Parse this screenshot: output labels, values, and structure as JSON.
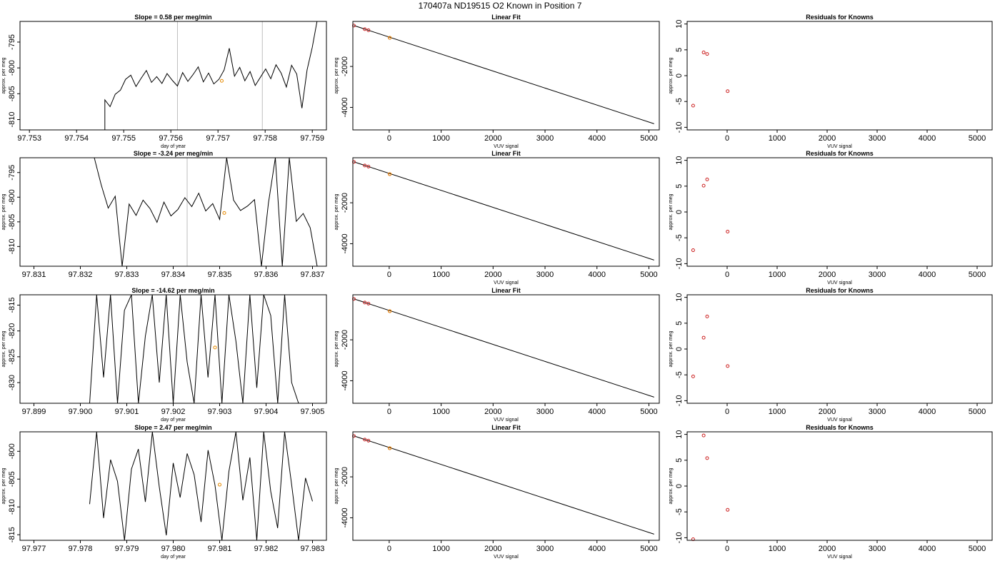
{
  "page_title": "170407a     ND19515   O2 Known in Position  7",
  "colors": {
    "trace": "#000000",
    "vline": "#bdbdbd",
    "known_point": "#cc2222",
    "highlight_point": "#e68a00",
    "axis": "#000000"
  },
  "chart_data": [
    {
      "type": "line",
      "row": 0,
      "title": "Slope =   0.58  per meg/min",
      "xlabel": "day of year",
      "ylabel": "approx. per meg",
      "xlim": [
        97.7528,
        97.7593
      ],
      "ylim": [
        -812,
        -791
      ],
      "xticks": [
        97.753,
        97.754,
        97.755,
        97.756,
        97.757,
        97.758,
        97.759
      ],
      "xtick_labels": [
        "97.753",
        "97.754",
        "97.755",
        "97.756",
        "97.757",
        "97.758",
        "97.759"
      ],
      "yticks": [
        -810,
        -805,
        -800,
        -795
      ],
      "ytick_labels": [
        "-810",
        "-805",
        "-800",
        "-795"
      ],
      "vlines": [
        97.75614,
        97.75794
      ],
      "highlight_point": [
        97.75708,
        -802.5
      ],
      "series": [
        {
          "x": [
            97.7546,
            97.7546,
            97.75471,
            97.75482,
            97.75493,
            97.75504,
            97.75515,
            97.75526,
            97.75537,
            97.75548,
            97.75559,
            97.7557,
            97.75581,
            97.75592,
            97.75603,
            97.75614,
            97.75625,
            97.75636,
            97.75647,
            97.75658,
            97.75669,
            97.7568,
            97.75691,
            97.75702,
            97.75713,
            97.75724,
            97.75735,
            97.75746,
            97.75757,
            97.75768,
            97.75779,
            97.7579,
            97.75801,
            97.75812,
            97.75823,
            97.75834,
            97.75845,
            97.75856,
            97.75867,
            97.75878,
            97.75889,
            97.759,
            97.7591
          ],
          "y": [
            -812,
            -806.2,
            -807.5,
            -805.1,
            -804.3,
            -802.2,
            -801.4,
            -803.6,
            -802.0,
            -800.5,
            -802.8,
            -801.7,
            -803.0,
            -801.1,
            -802.4,
            -803.5,
            -800.9,
            -802.6,
            -801.3,
            -799.8,
            -802.7,
            -801.0,
            -803.1,
            -802.2,
            -800.4,
            -796.2,
            -801.6,
            -799.9,
            -802.5,
            -800.7,
            -803.4,
            -801.8,
            -800.2,
            -802.1,
            -799.4,
            -801.0,
            -803.7,
            -799.5,
            -801.2,
            -807.8,
            -800.4,
            -796.0,
            -791.0
          ]
        }
      ]
    },
    {
      "type": "scatter",
      "row": 0,
      "title": "Linear Fit",
      "xlabel": "VUV signal",
      "ylabel": "approx. per meg",
      "xlim": [
        -700,
        5200
      ],
      "ylim": [
        -5100,
        200
      ],
      "xticks": [
        0,
        1000,
        2000,
        3000,
        4000,
        5000
      ],
      "xtick_labels": [
        "0",
        "1000",
        "2000",
        "3000",
        "4000",
        "5000"
      ],
      "yticks": [
        -4000,
        -2000
      ],
      "ytick_labels": [
        "-4000",
        "-2000"
      ],
      "fit_line": [
        [
          -680,
          0
        ],
        [
          5100,
          -4800
        ]
      ],
      "points": [
        [
          -680,
          -5
        ],
        [
          -470,
          -180
        ],
        [
          -400,
          -230
        ],
        [
          10,
          -600
        ]
      ],
      "highlight_point": [
        10,
        -600
      ]
    },
    {
      "type": "scatter",
      "row": 0,
      "title": "Residuals for Knowns",
      "xlabel": "VUV signal",
      "ylabel": "approx. per meg",
      "xlim": [
        -800,
        5300
      ],
      "ylim": [
        -10.5,
        10.5
      ],
      "xticks": [
        0,
        1000,
        2000,
        3000,
        4000,
        5000
      ],
      "xtick_labels": [
        "0",
        "1000",
        "2000",
        "3000",
        "4000",
        "5000"
      ],
      "yticks": [
        -10,
        -5,
        0,
        5,
        10
      ],
      "ytick_labels": [
        "-10",
        "-5",
        "0",
        "5",
        "10"
      ],
      "points": [
        [
          -680,
          -5.8
        ],
        [
          -470,
          4.5
        ],
        [
          -400,
          4.2
        ],
        [
          10,
          -3.0
        ]
      ]
    },
    {
      "type": "line",
      "row": 1,
      "title": "Slope =   -3.24  per meg/min",
      "xlabel": "",
      "ylabel": "approx. per meg",
      "xlim": [
        97.8307,
        97.8373
      ],
      "ylim": [
        -814,
        -792
      ],
      "xticks": [
        97.831,
        97.832,
        97.833,
        97.834,
        97.835,
        97.836,
        97.837
      ],
      "xtick_labels": [
        "97.831",
        "97.832",
        "97.833",
        "97.834",
        "97.835",
        "97.836",
        "97.837"
      ],
      "yticks": [
        -810,
        -805,
        -800,
        -795
      ],
      "ytick_labels": [
        "-810",
        "-805",
        "-800",
        "-795"
      ],
      "vlines": [
        97.8343
      ],
      "highlight_point": [
        97.8351,
        -803.2
      ],
      "series": [
        {
          "x": [
            97.8323,
            97.83245,
            97.8326,
            97.83275,
            97.8329,
            97.83305,
            97.8332,
            97.83335,
            97.8335,
            97.83365,
            97.8338,
            97.83395,
            97.8341,
            97.83425,
            97.8344,
            97.83455,
            97.8347,
            97.83485,
            97.835,
            97.83515,
            97.8353,
            97.83545,
            97.8356,
            97.83575,
            97.8359,
            97.83605,
            97.8362,
            97.83635,
            97.8365,
            97.83665,
            97.8368,
            97.83695,
            97.8371
          ],
          "y": [
            -792,
            -797.5,
            -802.2,
            -799.8,
            -814,
            -801.4,
            -803.7,
            -800.6,
            -802.3,
            -805.1,
            -801.0,
            -803.8,
            -802.5,
            -800.1,
            -801.9,
            -799.2,
            -802.8,
            -801.3,
            -804.5,
            -792,
            -800.6,
            -802.7,
            -801.8,
            -800.5,
            -814,
            -801.2,
            -792,
            -814,
            -792,
            -804.9,
            -803.3,
            -806.2,
            -814
          ]
        }
      ]
    },
    {
      "type": "scatter",
      "row": 1,
      "title": "Linear Fit",
      "xlabel": "VUV signal",
      "ylabel": "approx. per meg",
      "xlim": [
        -700,
        5200
      ],
      "ylim": [
        -5100,
        200
      ],
      "xticks": [
        0,
        1000,
        2000,
        3000,
        4000,
        5000
      ],
      "xtick_labels": [
        "0",
        "1000",
        "2000",
        "3000",
        "4000",
        "5000"
      ],
      "yticks": [
        -4000,
        -2000
      ],
      "ytick_labels": [
        "-4000",
        "-2000"
      ],
      "fit_line": [
        [
          -680,
          0
        ],
        [
          5100,
          -4800
        ]
      ],
      "points": [
        [
          -680,
          -5
        ],
        [
          -470,
          -180
        ],
        [
          -400,
          -230
        ],
        [
          10,
          -600
        ]
      ],
      "highlight_point": [
        10,
        -600
      ]
    },
    {
      "type": "scatter",
      "row": 1,
      "title": "Residuals for Knowns",
      "xlabel": "VUV signal",
      "ylabel": "approx. per meg",
      "xlim": [
        -800,
        5300
      ],
      "ylim": [
        -10.5,
        10.5
      ],
      "xticks": [
        0,
        1000,
        2000,
        3000,
        4000,
        5000
      ],
      "xtick_labels": [
        "0",
        "1000",
        "2000",
        "3000",
        "4000",
        "5000"
      ],
      "yticks": [
        -10,
        -5,
        0,
        5,
        10
      ],
      "ytick_labels": [
        "-10",
        "-5",
        "0",
        "5",
        "10"
      ],
      "points": [
        [
          -680,
          -7.4
        ],
        [
          -470,
          5.1
        ],
        [
          -400,
          6.3
        ],
        [
          10,
          -3.8
        ]
      ]
    },
    {
      "type": "line",
      "row": 2,
      "title": "Slope =   -14.62  per meg/min",
      "xlabel": "day of year",
      "ylabel": "approx. per meg",
      "xlim": [
        97.8987,
        97.9053
      ],
      "ylim": [
        -834,
        -813
      ],
      "xticks": [
        97.899,
        97.9,
        97.901,
        97.902,
        97.903,
        97.904,
        97.905
      ],
      "xtick_labels": [
        "97.899",
        "97.900",
        "97.901",
        "97.902",
        "97.903",
        "97.904",
        "97.905"
      ],
      "yticks": [
        -830,
        -825,
        -820,
        -815
      ],
      "ytick_labels": [
        "-830",
        "-825",
        "-820",
        "-815"
      ],
      "vlines": [],
      "highlight_point": [
        97.9029,
        -823.2
      ],
      "series": [
        {
          "x": [
            97.9002,
            97.90035,
            97.9005,
            97.90065,
            97.9008,
            97.90095,
            97.9011,
            97.90125,
            97.9014,
            97.90155,
            97.9017,
            97.90185,
            97.902,
            97.90215,
            97.9023,
            97.90245,
            97.9026,
            97.90275,
            97.9029,
            97.90305,
            97.9032,
            97.90335,
            97.9035,
            97.90365,
            97.9038,
            97.90395,
            97.9041,
            97.90425,
            97.9044,
            97.90455,
            97.9047
          ],
          "y": [
            -834,
            -813,
            -829,
            -813,
            -834,
            -816,
            -813,
            -834,
            -821,
            -813,
            -830,
            -813,
            -834,
            -813,
            -826,
            -834,
            -813,
            -829,
            -813,
            -834,
            -813,
            -822,
            -834,
            -813,
            -831,
            -813,
            -817,
            -834,
            -813,
            -830,
            -834
          ]
        }
      ]
    },
    {
      "type": "scatter",
      "row": 2,
      "title": "Linear Fit",
      "xlabel": "VUV signal",
      "ylabel": "approx. per meg",
      "xlim": [
        -700,
        5200
      ],
      "ylim": [
        -5100,
        200
      ],
      "xticks": [
        0,
        1000,
        2000,
        3000,
        4000,
        5000
      ],
      "xtick_labels": [
        "0",
        "1000",
        "2000",
        "3000",
        "4000",
        "5000"
      ],
      "yticks": [
        -4000,
        -2000
      ],
      "ytick_labels": [
        "-4000",
        "-2000"
      ],
      "fit_line": [
        [
          -680,
          0
        ],
        [
          5100,
          -4800
        ]
      ],
      "points": [
        [
          -680,
          -5
        ],
        [
          -470,
          -180
        ],
        [
          -400,
          -230
        ],
        [
          10,
          -600
        ]
      ],
      "highlight_point": [
        10,
        -600
      ]
    },
    {
      "type": "scatter",
      "row": 2,
      "title": "Residuals for Knowns",
      "xlabel": "VUV signal",
      "ylabel": "approx. per meg",
      "xlim": [
        -800,
        5300
      ],
      "ylim": [
        -10.5,
        10.5
      ],
      "xticks": [
        0,
        1000,
        2000,
        3000,
        4000,
        5000
      ],
      "xtick_labels": [
        "0",
        "1000",
        "2000",
        "3000",
        "4000",
        "5000"
      ],
      "yticks": [
        -10,
        -5,
        0,
        5,
        10
      ],
      "ytick_labels": [
        "-10",
        "-5",
        "0",
        "5",
        "10"
      ],
      "points": [
        [
          -680,
          -5.3
        ],
        [
          -470,
          2.2
        ],
        [
          -400,
          6.3
        ],
        [
          10,
          -3.3
        ]
      ]
    },
    {
      "type": "line",
      "row": 3,
      "title": "Slope =   2.47  per meg/min",
      "xlabel": "day of year",
      "ylabel": "approx. per meg",
      "xlim": [
        97.9767,
        97.9833
      ],
      "ylim": [
        -816,
        -796.5
      ],
      "xticks": [
        97.977,
        97.978,
        97.979,
        97.98,
        97.981,
        97.982,
        97.983
      ],
      "xtick_labels": [
        "97.977",
        "97.978",
        "97.979",
        "97.980",
        "97.981",
        "97.982",
        "97.983"
      ],
      "yticks": [
        -815,
        -810,
        -805,
        -800
      ],
      "ytick_labels": [
        "-815",
        "-810",
        "-805",
        "-800"
      ],
      "vlines": [],
      "highlight_point": [
        97.981,
        -806
      ],
      "series": [
        {
          "x": [
            97.9782,
            97.97835,
            97.9785,
            97.97865,
            97.9788,
            97.97895,
            97.9791,
            97.97925,
            97.9794,
            97.97955,
            97.9797,
            97.97985,
            97.98,
            97.98015,
            97.9803,
            97.98045,
            97.9806,
            97.98075,
            97.9809,
            97.98105,
            97.9812,
            97.98135,
            97.9815,
            97.98165,
            97.9818,
            97.98195,
            97.9821,
            97.98225,
            97.9824,
            97.98255,
            97.9827,
            97.98285,
            97.983
          ],
          "y": [
            -809.5,
            -796.5,
            -812,
            -801.5,
            -805.4,
            -816,
            -803.2,
            -799.6,
            -809.1,
            -796.5,
            -806.4,
            -815.1,
            -802.1,
            -808.3,
            -800.4,
            -804.2,
            -812.7,
            -799.8,
            -806.1,
            -816,
            -803.6,
            -796.5,
            -808.8,
            -801.1,
            -816,
            -796.5,
            -807.2,
            -813.8,
            -796.5,
            -806.0,
            -816,
            -804.8,
            -809.0
          ]
        }
      ]
    },
    {
      "type": "scatter",
      "row": 3,
      "title": "Linear Fit",
      "xlabel": "VUV signal",
      "ylabel": "approx. per meg",
      "xlim": [
        -700,
        5200
      ],
      "ylim": [
        -5100,
        200
      ],
      "xticks": [
        0,
        1000,
        2000,
        3000,
        4000,
        5000
      ],
      "xtick_labels": [
        "0",
        "1000",
        "2000",
        "3000",
        "4000",
        "5000"
      ],
      "yticks": [
        -4000,
        -2000
      ],
      "ytick_labels": [
        "-4000",
        "-2000"
      ],
      "fit_line": [
        [
          -680,
          0
        ],
        [
          5100,
          -4800
        ]
      ],
      "points": [
        [
          -680,
          -5
        ],
        [
          -470,
          -180
        ],
        [
          -400,
          -230
        ],
        [
          10,
          -600
        ]
      ],
      "highlight_point": [
        10,
        -600
      ]
    },
    {
      "type": "scatter",
      "row": 3,
      "title": "Residuals for Knowns",
      "xlabel": "VUV signal",
      "ylabel": "approx. per meg",
      "xlim": [
        -800,
        5300
      ],
      "ylim": [
        -10.5,
        10.5
      ],
      "xticks": [
        0,
        1000,
        2000,
        3000,
        4000,
        5000
      ],
      "xtick_labels": [
        "0",
        "1000",
        "2000",
        "3000",
        "4000",
        "5000"
      ],
      "yticks": [
        -10,
        -5,
        0,
        5,
        10
      ],
      "ytick_labels": [
        "-10",
        "-5",
        "0",
        "5",
        "10"
      ],
      "points": [
        [
          -680,
          -10.3
        ],
        [
          -470,
          9.8
        ],
        [
          -400,
          5.4
        ],
        [
          10,
          -4.6
        ]
      ]
    }
  ]
}
